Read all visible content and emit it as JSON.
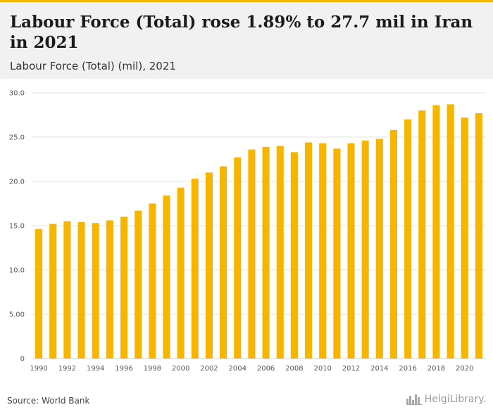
{
  "header": {
    "title": "Labour Force (Total) rose 1.89% to 27.7 mil in Iran in 2021",
    "subtitle": "Labour Force (Total) (mil), 2021"
  },
  "footer": {
    "source": "Source: World Bank",
    "logo_text": "HelgiLibrary."
  },
  "colors": {
    "bar": "#f7b500",
    "header_bg": "#f1f1f1",
    "grid": "#e3e3e3"
  },
  "icons": {
    "logo": "city-skyline-icon"
  },
  "chart_data": {
    "type": "bar",
    "title": "Labour Force (Total) rose 1.89% to 27.7 mil in Iran in 2021",
    "subtitle": "Labour Force (Total) (mil), 2021",
    "xlabel": "",
    "ylabel": "",
    "ylim": [
      0,
      30
    ],
    "grid": true,
    "legend": "none",
    "y_ticks": [
      0,
      5,
      10,
      15,
      20,
      25,
      30
    ],
    "y_tick_labels": [
      "0",
      "5.00",
      "10.0",
      "15.0",
      "20.0",
      "25.0",
      "30.0"
    ],
    "x_tick_labels": [
      "1990",
      "1992",
      "1994",
      "1996",
      "1998",
      "2000",
      "2002",
      "2004",
      "2006",
      "2008",
      "2010",
      "2012",
      "2014",
      "2016",
      "2018",
      "2020"
    ],
    "categories": [
      "1990",
      "1991",
      "1992",
      "1993",
      "1994",
      "1995",
      "1996",
      "1997",
      "1998",
      "1999",
      "2000",
      "2001",
      "2002",
      "2003",
      "2004",
      "2005",
      "2006",
      "2007",
      "2008",
      "2009",
      "2010",
      "2011",
      "2012",
      "2013",
      "2014",
      "2015",
      "2016",
      "2017",
      "2018",
      "2019",
      "2020",
      "2021"
    ],
    "values": [
      14.6,
      15.2,
      15.5,
      15.4,
      15.3,
      15.6,
      16.0,
      16.7,
      17.5,
      18.4,
      19.3,
      20.3,
      21.0,
      21.7,
      22.7,
      23.6,
      23.9,
      24.0,
      23.3,
      24.4,
      24.3,
      23.7,
      24.3,
      24.6,
      24.8,
      25.8,
      27.0,
      28.0,
      28.6,
      28.7,
      27.2,
      27.7
    ]
  }
}
